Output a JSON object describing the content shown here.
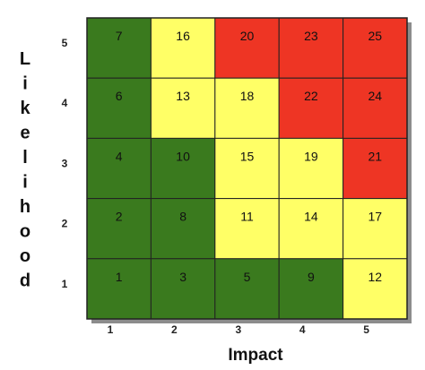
{
  "chart_data": {
    "type": "heatmap",
    "title": "",
    "xlabel": "Impact",
    "ylabel": "Likelihood",
    "x_ticks": [
      "1",
      "2",
      "3",
      "4",
      "5"
    ],
    "y_ticks": [
      "5",
      "4",
      "3",
      "2",
      "1"
    ],
    "rows": [
      {
        "likelihood": "5",
        "cells": [
          {
            "impact": "1",
            "value": 7,
            "risk": "low"
          },
          {
            "impact": "2",
            "value": 16,
            "risk": "medium"
          },
          {
            "impact": "3",
            "value": 20,
            "risk": "high"
          },
          {
            "impact": "4",
            "value": 23,
            "risk": "high"
          },
          {
            "impact": "5",
            "value": 25,
            "risk": "high"
          }
        ]
      },
      {
        "likelihood": "4",
        "cells": [
          {
            "impact": "1",
            "value": 6,
            "risk": "low"
          },
          {
            "impact": "2",
            "value": 13,
            "risk": "medium"
          },
          {
            "impact": "3",
            "value": 18,
            "risk": "medium"
          },
          {
            "impact": "4",
            "value": 22,
            "risk": "high"
          },
          {
            "impact": "5",
            "value": 24,
            "risk": "high"
          }
        ]
      },
      {
        "likelihood": "3",
        "cells": [
          {
            "impact": "1",
            "value": 4,
            "risk": "low"
          },
          {
            "impact": "2",
            "value": 10,
            "risk": "low"
          },
          {
            "impact": "3",
            "value": 15,
            "risk": "medium"
          },
          {
            "impact": "4",
            "value": 19,
            "risk": "medium"
          },
          {
            "impact": "5",
            "value": 21,
            "risk": "high"
          }
        ]
      },
      {
        "likelihood": "2",
        "cells": [
          {
            "impact": "1",
            "value": 2,
            "risk": "low"
          },
          {
            "impact": "2",
            "value": 8,
            "risk": "low"
          },
          {
            "impact": "3",
            "value": 11,
            "risk": "medium"
          },
          {
            "impact": "4",
            "value": 14,
            "risk": "medium"
          },
          {
            "impact": "5",
            "value": 17,
            "risk": "medium"
          }
        ]
      },
      {
        "likelihood": "1",
        "cells": [
          {
            "impact": "1",
            "value": 1,
            "risk": "low"
          },
          {
            "impact": "2",
            "value": 3,
            "risk": "low"
          },
          {
            "impact": "3",
            "value": 5,
            "risk": "low"
          },
          {
            "impact": "4",
            "value": 9,
            "risk": "low"
          },
          {
            "impact": "5",
            "value": 12,
            "risk": "medium"
          }
        ]
      }
    ],
    "colors": {
      "low": "#3a7a1e",
      "medium": "#ffff66",
      "high": "#ee3524",
      "grid_line": "#222222",
      "shadow": "#8c8c8c"
    },
    "grid": true,
    "legend": "none"
  }
}
